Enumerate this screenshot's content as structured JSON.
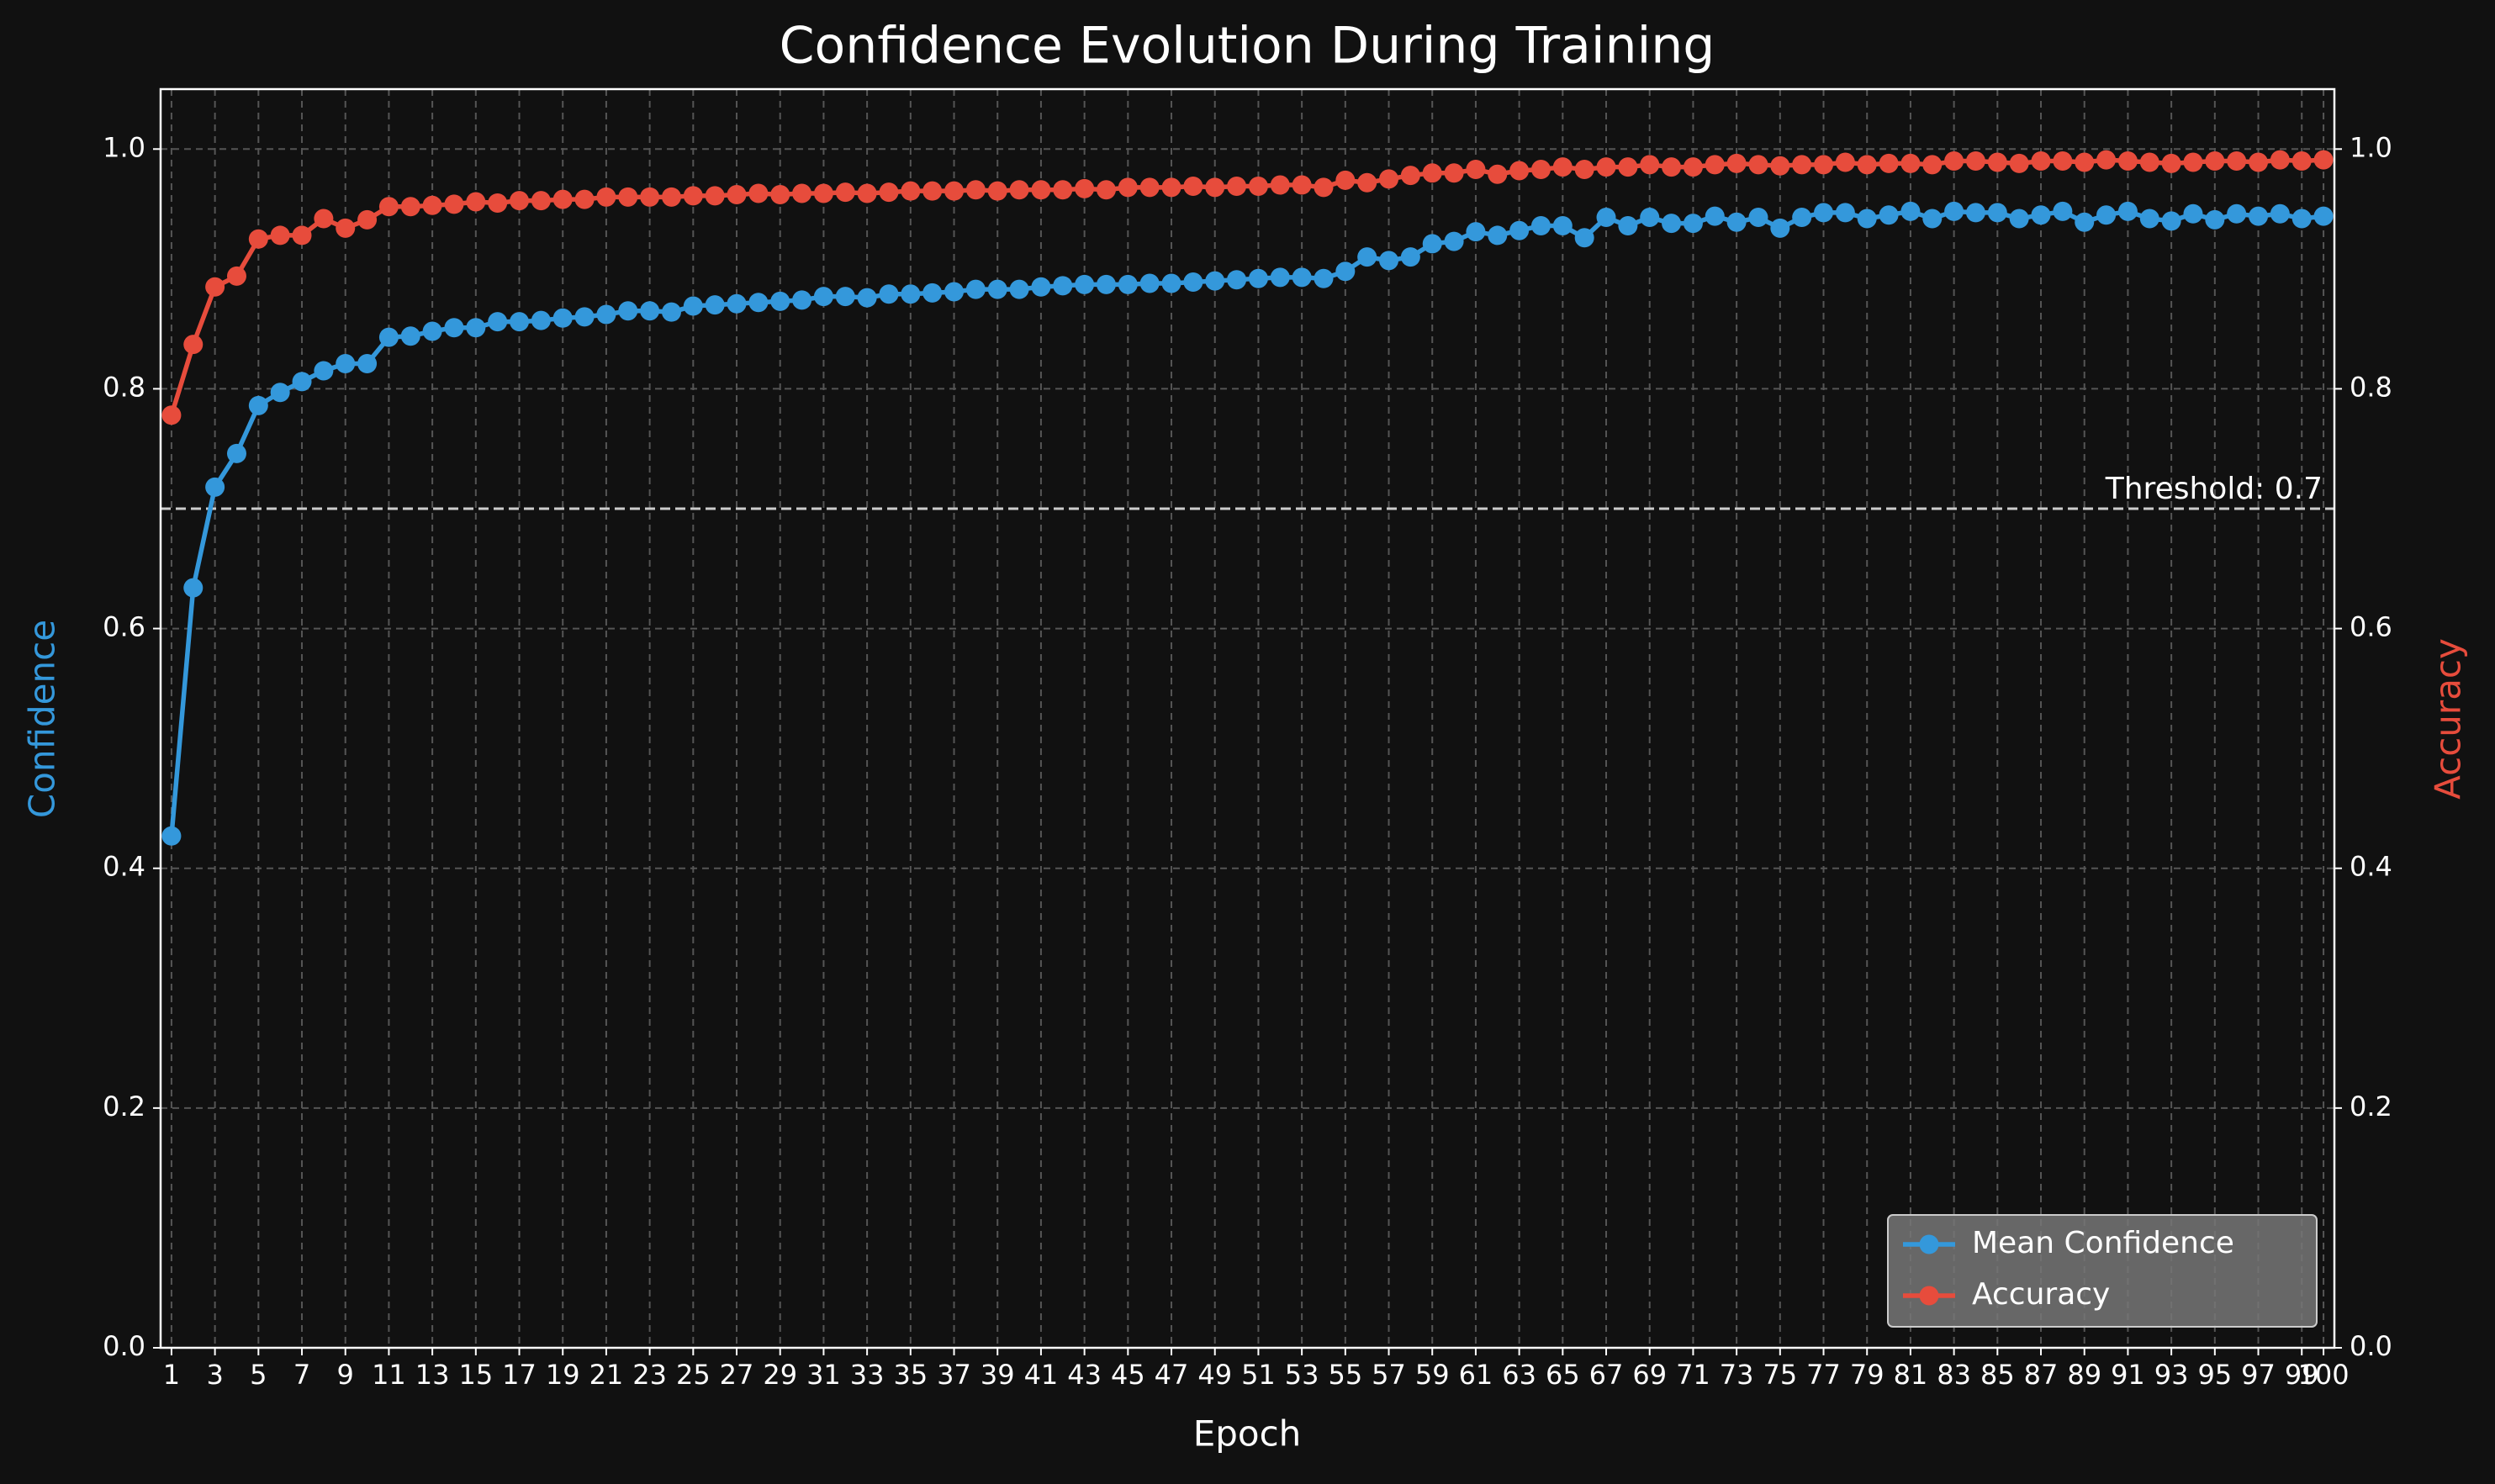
{
  "chart_data": {
    "type": "line",
    "title": "Confidence Evolution During Training",
    "x_label": "Epoch",
    "y_label": "Confidence",
    "y2_label": "Accuracy",
    "x": [
      1,
      2,
      3,
      4,
      5,
      6,
      7,
      8,
      9,
      10,
      11,
      12,
      13,
      14,
      15,
      16,
      17,
      18,
      19,
      20,
      21,
      22,
      23,
      24,
      25,
      26,
      27,
      28,
      29,
      30,
      31,
      32,
      33,
      34,
      35,
      36,
      37,
      38,
      39,
      40,
      41,
      42,
      43,
      44,
      45,
      46,
      47,
      48,
      49,
      50,
      51,
      52,
      53,
      54,
      55,
      56,
      57,
      58,
      59,
      60,
      61,
      62,
      63,
      64,
      65,
      66,
      67,
      68,
      69,
      70,
      71,
      72,
      73,
      74,
      75,
      76,
      77,
      78,
      79,
      80,
      81,
      82,
      83,
      84,
      85,
      86,
      87,
      88,
      89,
      90,
      91,
      92,
      93,
      94,
      95,
      96,
      97,
      98,
      99,
      100
    ],
    "series": [
      {
        "name": "Mean Confidence",
        "color": "#3498db",
        "axis": "y",
        "values": [
          0.427,
          0.634,
          0.718,
          0.746,
          0.786,
          0.797,
          0.806,
          0.815,
          0.821,
          0.821,
          0.843,
          0.844,
          0.848,
          0.851,
          0.851,
          0.856,
          0.856,
          0.857,
          0.859,
          0.86,
          0.862,
          0.865,
          0.865,
          0.864,
          0.869,
          0.87,
          0.871,
          0.872,
          0.873,
          0.874,
          0.877,
          0.877,
          0.876,
          0.879,
          0.879,
          0.88,
          0.881,
          0.883,
          0.883,
          0.883,
          0.885,
          0.886,
          0.887,
          0.887,
          0.887,
          0.888,
          0.888,
          0.889,
          0.89,
          0.891,
          0.892,
          0.893,
          0.893,
          0.892,
          0.898,
          0.91,
          0.907,
          0.91,
          0.921,
          0.923,
          0.931,
          0.928,
          0.932,
          0.936,
          0.936,
          0.926,
          0.943,
          0.936,
          0.943,
          0.938,
          0.938,
          0.944,
          0.939,
          0.943,
          0.934,
          0.943,
          0.947,
          0.947,
          0.942,
          0.945,
          0.948,
          0.942,
          0.948,
          0.947,
          0.947,
          0.942,
          0.945,
          0.948,
          0.939,
          0.945,
          0.948,
          0.942,
          0.94,
          0.946,
          0.941,
          0.946,
          0.944,
          0.946,
          0.942,
          0.944
        ]
      },
      {
        "name": "Accuracy",
        "color": "#e74c3c",
        "axis": "y2",
        "values": [
          0.778,
          0.837,
          0.885,
          0.894,
          0.925,
          0.928,
          0.928,
          0.942,
          0.934,
          0.941,
          0.952,
          0.952,
          0.953,
          0.954,
          0.956,
          0.955,
          0.957,
          0.957,
          0.958,
          0.958,
          0.96,
          0.96,
          0.96,
          0.96,
          0.961,
          0.961,
          0.962,
          0.963,
          0.962,
          0.963,
          0.963,
          0.964,
          0.963,
          0.964,
          0.965,
          0.965,
          0.965,
          0.966,
          0.965,
          0.966,
          0.966,
          0.966,
          0.967,
          0.966,
          0.968,
          0.968,
          0.968,
          0.969,
          0.968,
          0.969,
          0.969,
          0.97,
          0.97,
          0.968,
          0.974,
          0.972,
          0.975,
          0.978,
          0.98,
          0.98,
          0.983,
          0.979,
          0.982,
          0.983,
          0.985,
          0.983,
          0.985,
          0.985,
          0.987,
          0.985,
          0.985,
          0.987,
          0.988,
          0.987,
          0.986,
          0.987,
          0.987,
          0.989,
          0.987,
          0.988,
          0.988,
          0.987,
          0.99,
          0.99,
          0.989,
          0.988,
          0.99,
          0.99,
          0.989,
          0.991,
          0.99,
          0.989,
          0.988,
          0.989,
          0.99,
          0.99,
          0.989,
          0.991,
          0.99,
          0.991
        ]
      }
    ],
    "xlim": [
      0.5,
      100.5
    ],
    "xticks": [
      1,
      3,
      5,
      7,
      9,
      11,
      13,
      15,
      17,
      19,
      21,
      23,
      25,
      27,
      29,
      31,
      33,
      35,
      37,
      39,
      41,
      43,
      45,
      47,
      49,
      51,
      53,
      55,
      57,
      59,
      61,
      63,
      65,
      67,
      69,
      71,
      73,
      75,
      77,
      79,
      81,
      83,
      85,
      87,
      89,
      91,
      93,
      95,
      97,
      99,
      100
    ],
    "ylim": [
      0,
      1.05
    ],
    "yticks": [
      {
        "value": 0,
        "label": "0.0"
      },
      0.2,
      0.4,
      0.6,
      0.8,
      {
        "value": 1,
        "label": "1.0"
      }
    ],
    "y2lim": [
      0,
      1.05
    ],
    "y2ticks": [
      {
        "value": 0,
        "label": "0.0"
      },
      0.2,
      0.4,
      0.6,
      0.8,
      {
        "value": 1,
        "label": "1.0"
      }
    ],
    "threshold": 0.7,
    "threshold_label": "Threshold: 0.7",
    "grid": true,
    "legend_position": "lower right"
  }
}
